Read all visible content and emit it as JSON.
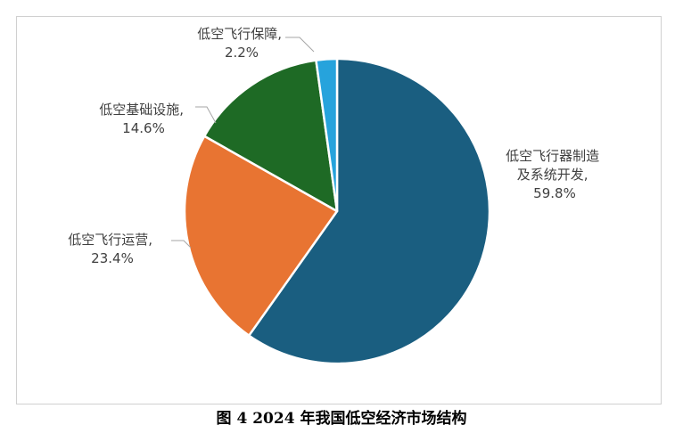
{
  "caption": "图 4   2024 年我国低空经济市场结构",
  "chart_data": {
    "type": "pie",
    "title": "",
    "slices": [
      {
        "label_lines": [
          "低空飞行器制造",
          "及系统开发,"
        ],
        "value": 59.8,
        "value_text": "59.8%",
        "color": "#1a5e80"
      },
      {
        "label_lines": [
          "低空飞行运营,"
        ],
        "value": 23.4,
        "value_text": "23.4%",
        "color": "#e87432"
      },
      {
        "label_lines": [
          "低空基础设施,"
        ],
        "value": 14.6,
        "value_text": "14.6%",
        "color": "#1e6a25"
      },
      {
        "label_lines": [
          "低空飞行保障,"
        ],
        "value": 2.2,
        "value_text": "2.2%",
        "color": "#26a3dc"
      }
    ]
  }
}
